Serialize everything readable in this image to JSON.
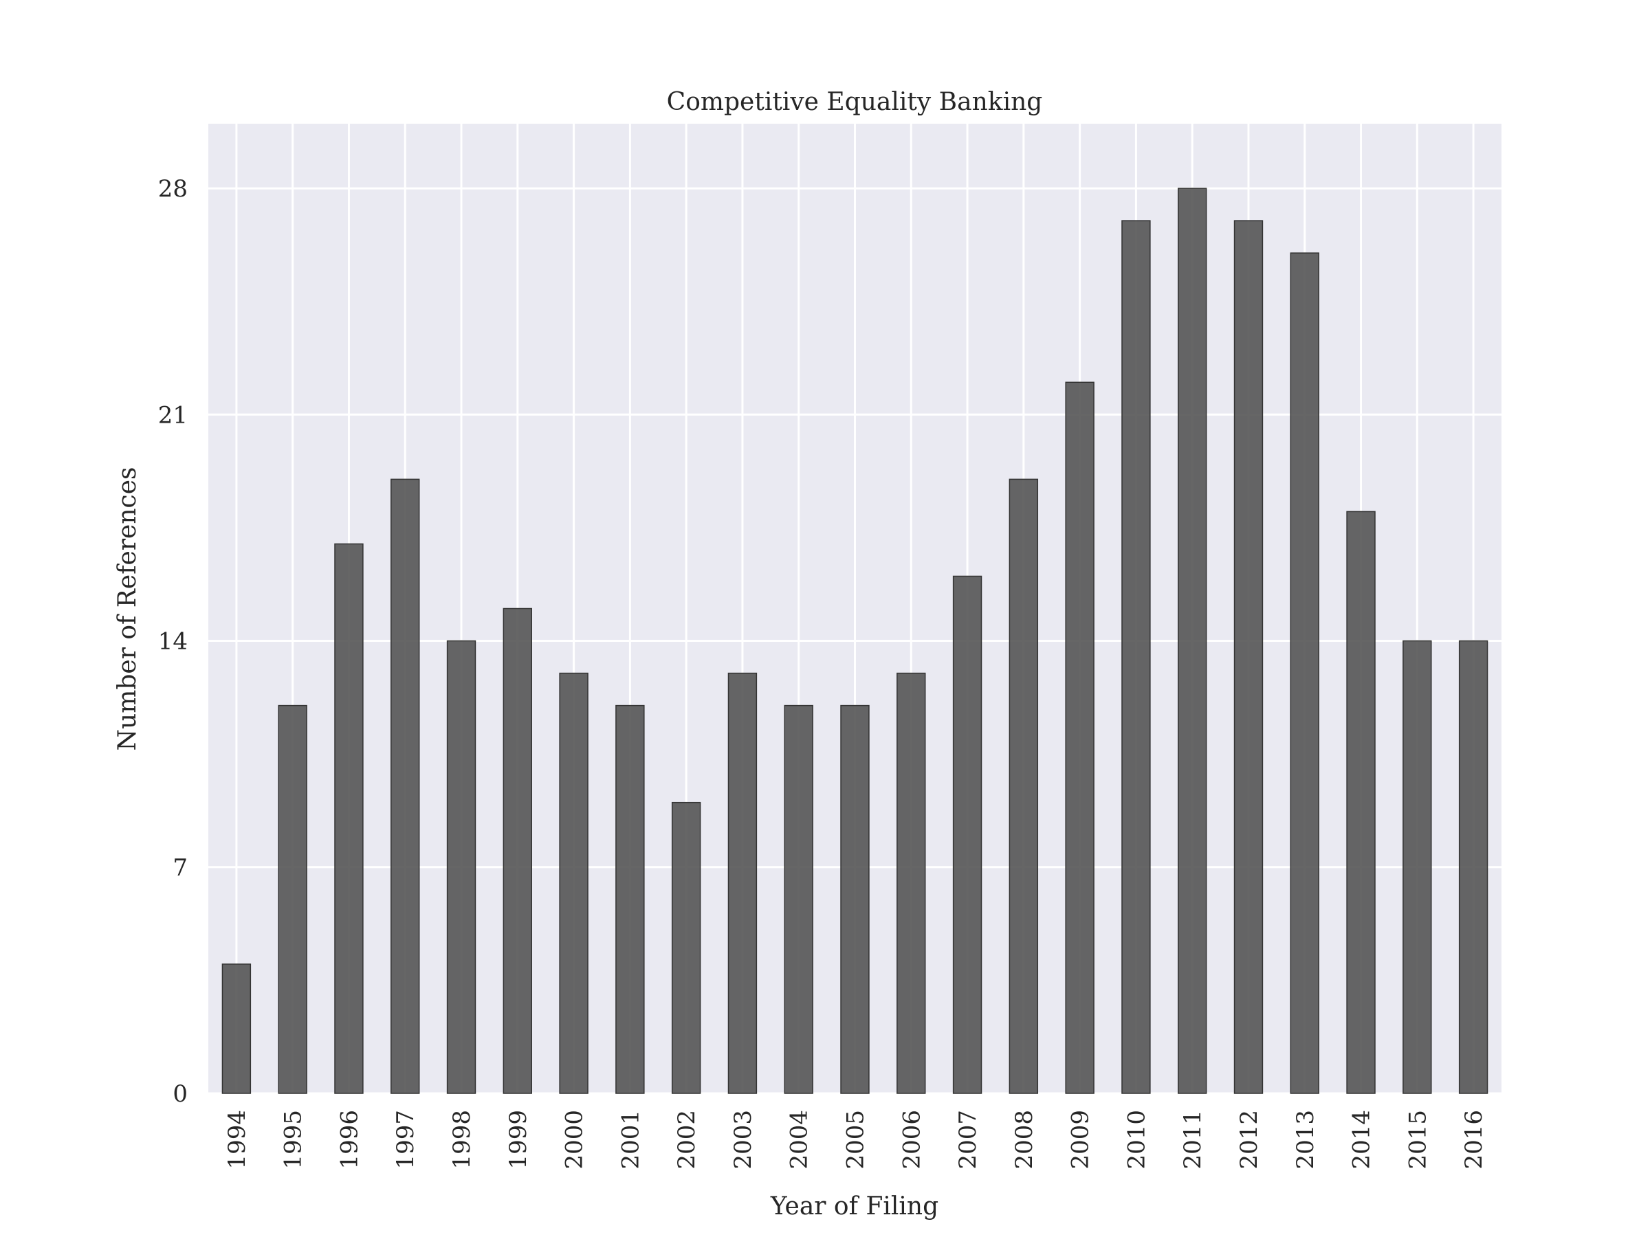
{
  "chart_data": {
    "type": "bar",
    "title": "Competitive Equality Banking",
    "xlabel": "Year of Filing",
    "ylabel": "Number of References",
    "categories": [
      "1994",
      "1995",
      "1996",
      "1997",
      "1998",
      "1999",
      "2000",
      "2001",
      "2002",
      "2003",
      "2004",
      "2005",
      "2006",
      "2007",
      "2008",
      "2009",
      "2010",
      "2011",
      "2012",
      "2013",
      "2014",
      "2015",
      "2016"
    ],
    "values": [
      4,
      12,
      17,
      19,
      14,
      15,
      13,
      12,
      9,
      13,
      12,
      12,
      13,
      16,
      19,
      22,
      27,
      28,
      27,
      26,
      18,
      14,
      14
    ],
    "yticks": [
      0,
      7,
      14,
      21,
      28
    ],
    "ylim": [
      0,
      30
    ],
    "grid": true,
    "background_color": "#eaeaf2",
    "bar_color": "#555555"
  }
}
